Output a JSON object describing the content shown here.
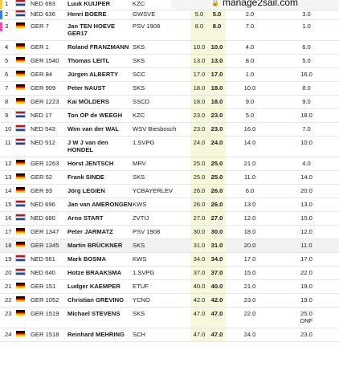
{
  "browser": {
    "url_text": "manage2sail.com"
  },
  "table": {
    "rows": [
      {
        "pos": "1",
        "nat": "NED",
        "flag": "ned",
        "sail": "NED 693",
        "name": "Luuk KUIJPER",
        "club": "KZC",
        "total": "5.0",
        "net": "5.0",
        "r1": "3.0",
        "r2": "2.0",
        "bar": "#f2c94c"
      },
      {
        "pos": "2",
        "nat": "NED",
        "flag": "ned",
        "sail": "NED 636",
        "name": "Henri BOERE",
        "club": "GWSVE",
        "total": "5.0",
        "net": "5.0",
        "r1": "2.0",
        "r2": "3.0",
        "bar": "#3b7fd4"
      },
      {
        "pos": "3",
        "nat": "GER",
        "flag": "ger",
        "sail": "GER 7",
        "name": "Jan TEN HOEVE GER17",
        "club": "PSV 1908",
        "total": "8.0",
        "net": "8.0",
        "r1": "7.0",
        "r2": "1.0",
        "bar": "#e64fa6"
      },
      {
        "pos": "4",
        "nat": "GER",
        "flag": "ger",
        "sail": "GER 1",
        "name": "Roland FRANZMANN",
        "club": "SKS",
        "total": "10.0",
        "net": "10.0",
        "r1": "4.0",
        "r2": "6.0"
      },
      {
        "pos": "5",
        "nat": "GER",
        "flag": "ger",
        "sail": "GER 1540",
        "name": "Thomas LEITL",
        "club": "SKS",
        "total": "13.0",
        "net": "13.0",
        "r1": "8.0",
        "r2": "5.0"
      },
      {
        "pos": "6",
        "nat": "GER",
        "flag": "ger",
        "sail": "GER 84",
        "name": "Jürgen ALBERTY",
        "club": "SCC",
        "total": "17.0",
        "net": "17.0",
        "r1": "1.0",
        "r2": "16.0"
      },
      {
        "pos": "7",
        "nat": "GER",
        "flag": "ger",
        "sail": "GER 909",
        "name": "Peter NAUST",
        "club": "SKS",
        "total": "18.0",
        "net": "18.0",
        "r1": "10.0",
        "r2": "8.0"
      },
      {
        "pos": "8",
        "nat": "GER",
        "flag": "ger",
        "sail": "GER 1223",
        "name": "Kai MÖLDERS",
        "club": "SSCD",
        "total": "18.0",
        "net": "18.0",
        "r1": "9.0",
        "r2": "9.0"
      },
      {
        "pos": "9",
        "nat": "NED",
        "flag": "ned",
        "sail": "NED 17",
        "name": "Ton OP de WEEGH",
        "club": "KZC",
        "total": "23.0",
        "net": "23.0",
        "r1": "5.0",
        "r2": "18.0"
      },
      {
        "pos": "10",
        "nat": "NED",
        "flag": "ned",
        "sail": "NED 543",
        "name": "Wim van der WAL",
        "club": "WSV Biesbosch",
        "total": "23.0",
        "net": "23.0",
        "r1": "16.0",
        "r2": "7.0"
      },
      {
        "pos": "11",
        "nat": "NED",
        "flag": "ned",
        "sail": "NED 512",
        "name": "J W J van den HONDEL",
        "club": "1.SVPG",
        "total": "24.0",
        "net": "24.0",
        "r1": "14.0",
        "r2": "10.0"
      },
      {
        "pos": "12",
        "nat": "GER",
        "flag": "ger",
        "sail": "GER 1263",
        "name": "Horst JENTSCH",
        "club": "MRV",
        "total": "25.0",
        "net": "25.0",
        "r1": "21.0",
        "r2": "4.0"
      },
      {
        "pos": "13",
        "nat": "GER",
        "flag": "ger",
        "sail": "GER 52",
        "name": "Frank SINDE",
        "club": "SKS",
        "total": "25.0",
        "net": "25.0",
        "r1": "11.0",
        "r2": "14.0"
      },
      {
        "pos": "14",
        "nat": "GER",
        "flag": "ger",
        "sail": "GER 93",
        "name": "Jörg LEGIEN",
        "club": "YCBAYERLEV",
        "total": "26.0",
        "net": "26.0",
        "r1": "6.0",
        "r2": "20.0"
      },
      {
        "pos": "15",
        "nat": "NED",
        "flag": "ned",
        "sail": "NED 696",
        "name": "Jan van AMERONGEN",
        "club": "KWS",
        "total": "26.0",
        "net": "26.0",
        "r1": "13.0",
        "r2": "13.0"
      },
      {
        "pos": "16",
        "nat": "NED",
        "flag": "ned",
        "sail": "NED 680",
        "name": "Arno START",
        "club": "ZVTIJ",
        "total": "27.0",
        "net": "27.0",
        "r1": "12.0",
        "r2": "15.0"
      },
      {
        "pos": "17",
        "nat": "GER",
        "flag": "ger",
        "sail": "GER 1347",
        "name": "Peter JARMATZ",
        "club": "PSV 1908",
        "total": "30.0",
        "net": "30.0",
        "r1": "18.0",
        "r2": "12.0"
      },
      {
        "pos": "18",
        "nat": "GER",
        "flag": "ger",
        "sail": "GER 1345",
        "name": "Martin BRÜCKNER",
        "club": "SKS",
        "total": "31.0",
        "net": "31.0",
        "r1": "20.0",
        "r2": "11.0",
        "hl": true
      },
      {
        "pos": "19",
        "nat": "NED",
        "flag": "ned",
        "sail": "NED 561",
        "name": "Mark BOSMA",
        "club": "KWS",
        "total": "34.0",
        "net": "34.0",
        "r1": "17.0",
        "r2": "17.0"
      },
      {
        "pos": "20",
        "nat": "NED",
        "flag": "ned",
        "sail": "NED 640",
        "name": "Hotze BRAAKSMA",
        "club": "1.SVPG",
        "total": "37.0",
        "net": "37.0",
        "r1": "15.0",
        "r2": "22.0"
      },
      {
        "pos": "21",
        "nat": "GER",
        "flag": "ger",
        "sail": "GER 151",
        "name": "Ludger KAEMPER",
        "club": "ETUF",
        "total": "40.0",
        "net": "40.0",
        "r1": "21.0",
        "r2": "19.0"
      },
      {
        "pos": "22",
        "nat": "GER",
        "flag": "ger",
        "sail": "GER 1052",
        "name": "Christian GREVING",
        "club": "YCNO",
        "total": "42.0",
        "net": "42.0",
        "r1": "23.0",
        "r2": "19.0"
      },
      {
        "pos": "23",
        "nat": "GER",
        "flag": "ger",
        "sail": "GER 1519",
        "name": "Michael STEVENS",
        "club": "SKS",
        "total": "47.0",
        "net": "47.0",
        "r1": "22.0",
        "r2": "25.0",
        "r2b": "DNF"
      },
      {
        "pos": "24",
        "nat": "GER",
        "flag": "ger",
        "sail": "GER 1518",
        "name": "Reinhard MEHRING",
        "club": "SCH",
        "total": "47.0",
        "net": "47.0",
        "r1": "24.0",
        "r2": "23.0"
      }
    ]
  },
  "colors": {
    "highlight_column": "#f7f7dc",
    "flag_ned": [
      "#ae1c28",
      "#ffffff",
      "#21468b"
    ],
    "flag_ger": [
      "#000000",
      "#dd0000",
      "#ffce00"
    ]
  }
}
